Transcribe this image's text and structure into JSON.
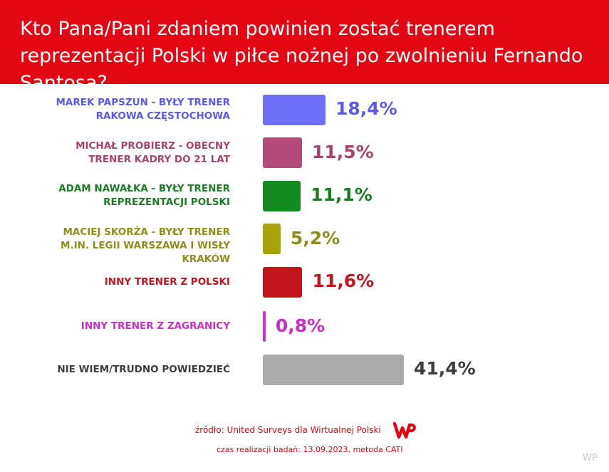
{
  "header": {
    "title": "Kto Pana/Pani zdaniem powinien zostać trenerem reprezentacji Polski w piłce nożnej po zwolnieniu Fernando Santosa?"
  },
  "chart_data": {
    "type": "bar",
    "orientation": "horizontal",
    "title": "Kto Pana/Pani zdaniem powinien zostać trenerem reprezentacji Polski w piłce nożnej po zwolnieniu Fernando Santosa?",
    "unit": "%",
    "xlim": [
      0,
      41.4
    ],
    "grid": false,
    "categories": [
      [
        "MAREK PAPSZUN - BYŁY TRENER",
        "RAKOWA CZĘSTOCHOWA"
      ],
      [
        "MICHAŁ PROBIERZ - OBECNY",
        "TRENER KADRY DO 21 LAT"
      ],
      [
        "ADAM NAWAŁKA - BYŁY TRENER",
        "REPREZENTACJI POLSKI"
      ],
      [
        "MACIEJ SKORŻA - BYŁY TRENER",
        "M.IN. LEGII WARSZAWA I WISŁY KRAKÓW"
      ],
      [
        "INNY TRENER Z POLSKI"
      ],
      [
        "INNY TRENER Z ZAGRANICY"
      ],
      [
        "NIE WIEM/TRUDNO POWIEDZIEĆ"
      ]
    ],
    "values": [
      18.4,
      11.5,
      11.1,
      5.2,
      11.6,
      0.8,
      41.4
    ],
    "value_labels": [
      "18,4%",
      "11,5%",
      "11,1%",
      "5,2%",
      "11,6%",
      "0,8%",
      "41,4%"
    ],
    "colors": [
      "#6e6ef8",
      "#b24b79",
      "#128c1e",
      "#a6a20a",
      "#c3141c",
      "#d62ed6",
      "#aaaaaa"
    ],
    "label_colors": [
      "#5a5ae8",
      "#a8436e",
      "#1a7d24",
      "#8f8d19",
      "#c3141c",
      "#c82fc8",
      "#3d3d3d"
    ]
  },
  "footer": {
    "source": "źródło: United Surveys dla Wirtualnej Polski",
    "date": "czas realizacji badań: 13.09.2023, metoda CATI",
    "watermark": "WP",
    "logo_text": "WP"
  }
}
